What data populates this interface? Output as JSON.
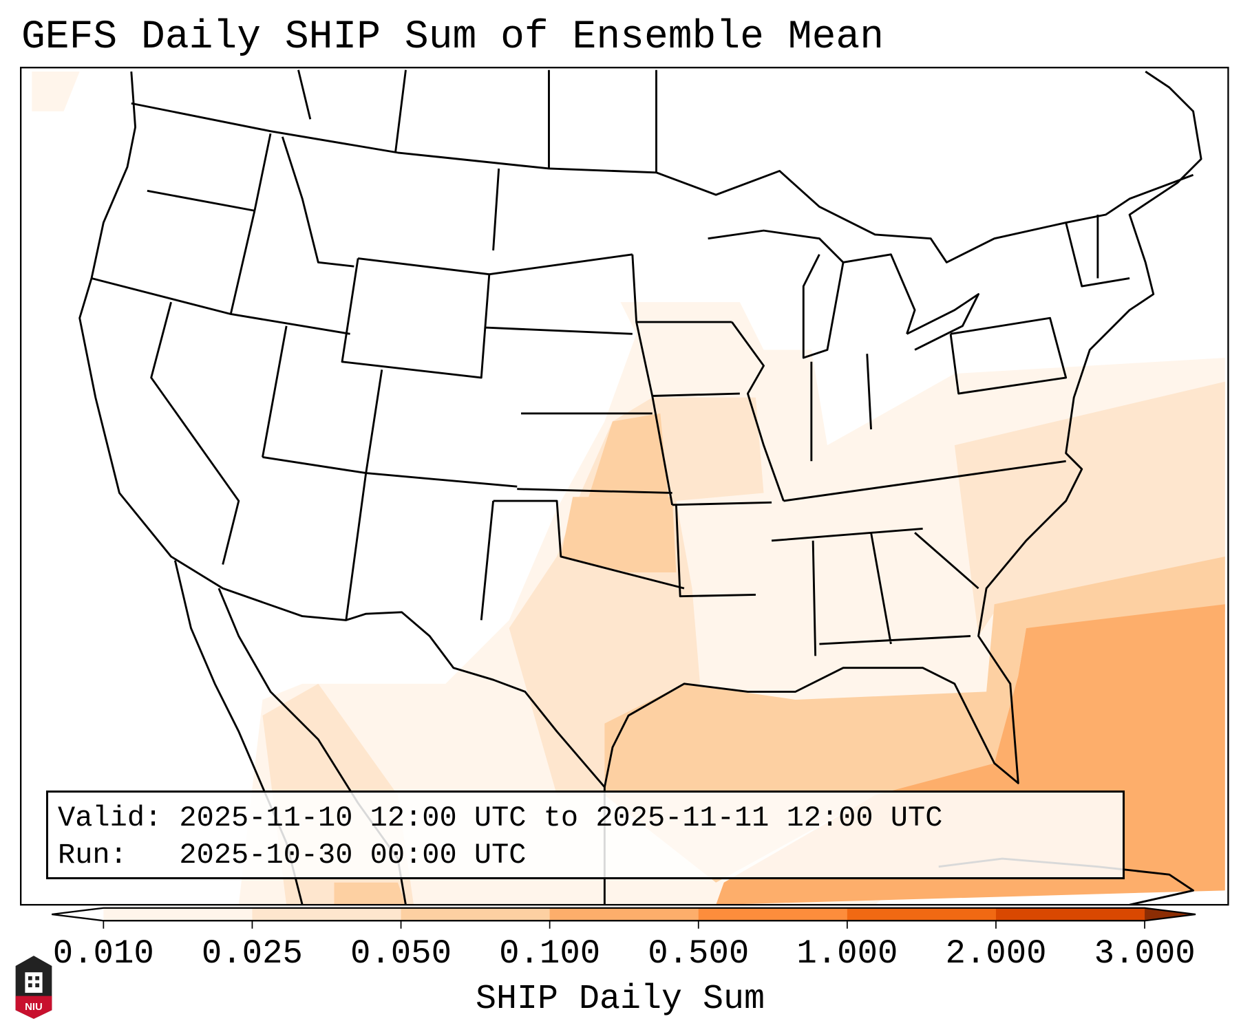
{
  "title": "GEFS Daily SHIP Sum of Ensemble Mean",
  "info": {
    "valid_line": "Valid: 2025-11-10 12:00 UTC to 2025-11-11 12:00 UTC",
    "run_line": "Run:   2025-10-30 00:00 UTC"
  },
  "colorbar": {
    "label": "SHIP Daily Sum",
    "ticks": [
      "0.010",
      "0.025",
      "0.050",
      "0.100",
      "0.500",
      "1.000",
      "2.000",
      "3.000"
    ],
    "colors": [
      "#ffffff",
      "#fff5eb",
      "#fee6ce",
      "#fdd0a2",
      "#fdae6b",
      "#fd8d3c",
      "#f16913",
      "#d94801",
      "#8c2d04"
    ]
  },
  "logo": {
    "text": "NIU"
  }
}
